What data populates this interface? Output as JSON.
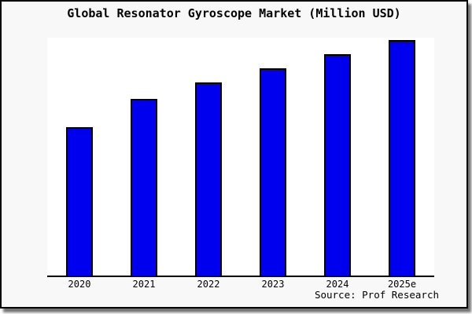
{
  "title": "Global Resonator Gyroscope Market (Million USD)",
  "source": "Source: Prof Research",
  "colors": {
    "bar_fill": "#0000ee",
    "bar_border": "#000000",
    "frame_background": "#f8f8f8",
    "plot_background": "#ffffff",
    "axis": "#000000"
  },
  "chart_data": {
    "type": "bar",
    "title": "Global Resonator Gyroscope Market (Million USD)",
    "categories": [
      "2020",
      "2021",
      "2022",
      "2023",
      "2024",
      "2025e"
    ],
    "values": [
      63,
      75,
      82,
      88,
      94,
      100
    ],
    "xlabel": "",
    "ylabel": "",
    "ylim": [
      0,
      101
    ],
    "grid": false,
    "legend": false,
    "annotation": "Source: Prof Research"
  }
}
